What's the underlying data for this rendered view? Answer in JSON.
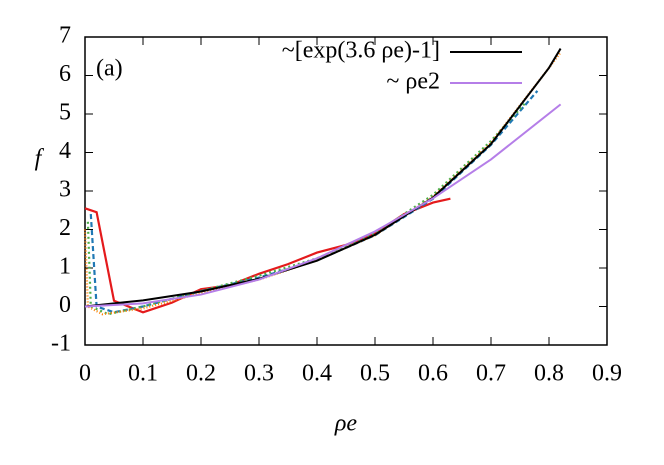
{
  "chart_data": {
    "type": "line",
    "panel_label": "(a)",
    "xlabel": "ρe",
    "ylabel": "f",
    "xlim": [
      0,
      0.9
    ],
    "ylim": [
      -1,
      7
    ],
    "xticks": [
      0,
      0.1,
      0.2,
      0.3,
      0.4,
      0.5,
      0.6,
      0.7,
      0.8,
      0.9
    ],
    "yticks": [
      -1,
      0,
      1,
      2,
      3,
      4,
      5,
      6,
      7
    ],
    "legend": "upper right",
    "series": [
      {
        "color": "#e41a1c",
        "x": [
          0,
          0.02,
          0.05,
          0.1,
          0.15,
          0.2,
          0.25,
          0.3,
          0.35,
          0.4,
          0.45,
          0.5,
          0.55,
          0.6,
          0.63
        ],
        "values": [
          2.55,
          2.45,
          0.15,
          -0.15,
          0.1,
          0.45,
          0.55,
          0.85,
          1.1,
          1.4,
          1.6,
          1.9,
          2.4,
          2.7,
          2.8
        ]
      },
      {
        "color": "#1f78b4",
        "dash": "5,3",
        "x": [
          0.01,
          0.02,
          0.05,
          0.1,
          0.2,
          0.3,
          0.4,
          0.5,
          0.6,
          0.7,
          0.78
        ],
        "values": [
          2.4,
          0,
          -0.15,
          0,
          0.4,
          0.75,
          1.2,
          1.85,
          2.8,
          4.2,
          5.6
        ]
      },
      {
        "color": "#4daf4a",
        "dash": "2,3",
        "x": [
          0.005,
          0.01,
          0.04,
          0.1,
          0.2,
          0.3,
          0.4,
          0.5,
          0.6,
          0.7,
          0.76
        ],
        "values": [
          2.2,
          0,
          -0.2,
          0,
          0.4,
          0.8,
          1.25,
          1.9,
          2.9,
          4.3,
          5.3
        ]
      },
      {
        "color": "#ff7f00",
        "dash": "1,2",
        "x": [
          0,
          0.005,
          0.03,
          0.1,
          0.2,
          0.3,
          0.4,
          0.5,
          0.6,
          0.7,
          0.8,
          0.82
        ],
        "values": [
          2.0,
          0,
          -0.2,
          -0.05,
          0.35,
          0.7,
          1.2,
          1.85,
          2.85,
          4.25,
          6.2,
          6.6
        ]
      },
      {
        "name": "~[exp(3.6 ρe)-1]",
        "color": "#000000",
        "x": [
          0,
          0.1,
          0.2,
          0.3,
          0.4,
          0.5,
          0.6,
          0.7,
          0.8,
          0.82
        ],
        "values": [
          0,
          0.16,
          0.39,
          0.72,
          1.19,
          1.86,
          2.83,
          4.22,
          6.2,
          6.7
        ]
      },
      {
        "name": "~ ρe2",
        "color": "#b57ee8",
        "x": [
          0,
          0.1,
          0.2,
          0.3,
          0.4,
          0.5,
          0.6,
          0.7,
          0.82
        ],
        "values": [
          0,
          0.08,
          0.31,
          0.7,
          1.25,
          1.95,
          2.81,
          3.82,
          5.25
        ]
      }
    ]
  }
}
